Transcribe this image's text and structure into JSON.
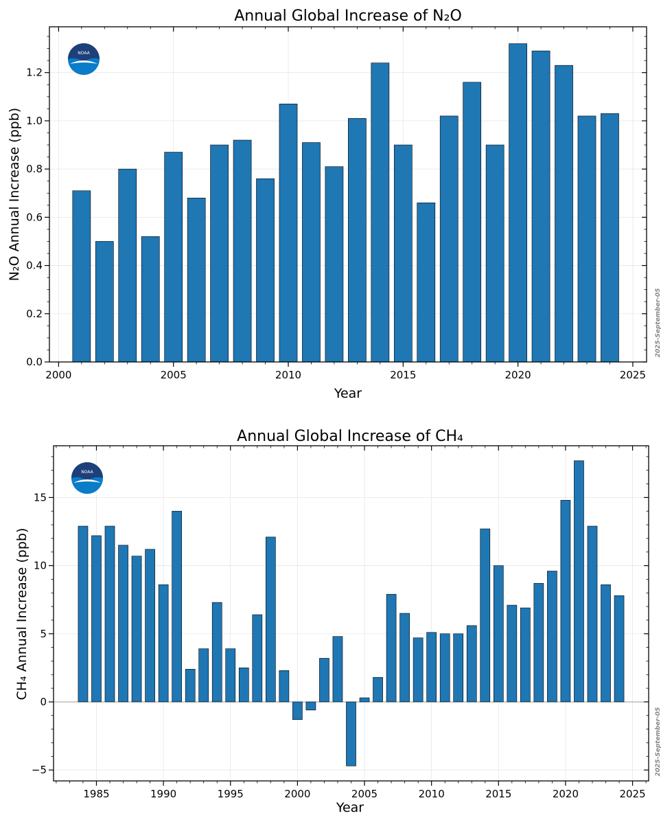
{
  "chart_data": [
    {
      "type": "bar",
      "title": "Annual Global Increase of N₂O",
      "xlabel": "Year",
      "ylabel": "N₂O Annual Increase (ppb)",
      "xlim": [
        1999.6,
        2025.6
      ],
      "ylim": [
        0,
        1.39
      ],
      "xticks": [
        2000,
        2005,
        2010,
        2015,
        2020,
        2025
      ],
      "yticks": [
        0.0,
        0.2,
        0.4,
        0.6,
        0.8,
        1.0,
        1.2
      ],
      "ytick_labels": [
        "0.0",
        "0.2",
        "0.4",
        "0.6",
        "0.8",
        "1.0",
        "1.2"
      ],
      "grid": true,
      "bar_color": "#1f77b4",
      "x": [
        2001,
        2002,
        2003,
        2004,
        2005,
        2006,
        2007,
        2008,
        2009,
        2010,
        2011,
        2012,
        2013,
        2014,
        2015,
        2016,
        2017,
        2018,
        2019,
        2020,
        2021,
        2022,
        2023,
        2024
      ],
      "values": [
        0.71,
        0.5,
        0.8,
        0.52,
        0.87,
        0.68,
        0.9,
        0.92,
        0.76,
        1.07,
        0.91,
        0.81,
        1.01,
        1.24,
        0.9,
        0.66,
        1.02,
        1.16,
        0.9,
        1.32,
        1.29,
        1.23,
        1.02,
        1.03
      ],
      "date_stamp": "2025-September-05",
      "logo": "noaa-logo"
    },
    {
      "type": "bar",
      "title": "Annual Global Increase of CH₄",
      "xlabel": "Year",
      "ylabel": "CH₄ Annual Increase (ppb)",
      "xlim": [
        1981.8,
        2026.2
      ],
      "ylim": [
        -5.8,
        18.8
      ],
      "xticks": [
        1985,
        1990,
        1995,
        2000,
        2005,
        2010,
        2015,
        2020,
        2025
      ],
      "yticks": [
        -5,
        0,
        5,
        10,
        15
      ],
      "ytick_labels": [
        "−5",
        "0",
        "5",
        "10",
        "15"
      ],
      "grid": true,
      "zero_line": true,
      "bar_color": "#1f77b4",
      "x": [
        1984,
        1985,
        1986,
        1987,
        1988,
        1989,
        1990,
        1991,
        1992,
        1993,
        1994,
        1995,
        1996,
        1997,
        1998,
        1999,
        2000,
        2001,
        2002,
        2003,
        2004,
        2005,
        2006,
        2007,
        2008,
        2009,
        2010,
        2011,
        2012,
        2013,
        2014,
        2015,
        2016,
        2017,
        2018,
        2019,
        2020,
        2021,
        2022,
        2023,
        2024
      ],
      "values": [
        12.9,
        12.2,
        12.9,
        11.5,
        10.7,
        11.2,
        8.6,
        14.0,
        2.4,
        3.9,
        7.3,
        3.9,
        2.5,
        6.4,
        12.1,
        2.3,
        -1.3,
        -0.6,
        3.2,
        4.8,
        -4.7,
        0.3,
        1.8,
        7.9,
        6.5,
        4.7,
        5.1,
        5.0,
        5.0,
        5.6,
        12.7,
        10.0,
        7.1,
        6.9,
        8.7,
        9.6,
        14.8,
        17.7,
        12.9,
        8.6,
        7.8
      ],
      "date_stamp": "2025-September-05",
      "logo": "noaa-logo"
    }
  ]
}
